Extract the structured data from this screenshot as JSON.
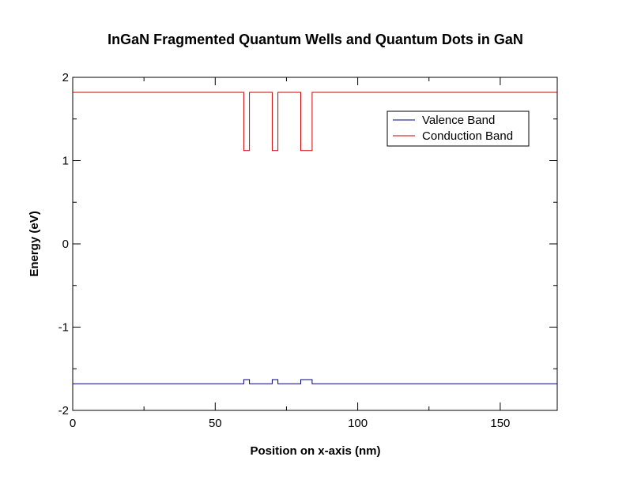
{
  "chart_data": {
    "type": "line",
    "title": "InGaN Fragmented Quantum Wells and Quantum Dots in GaN",
    "xlabel": "Position on x-axis (nm)",
    "ylabel": "Energy (eV)",
    "xlim": [
      0,
      170
    ],
    "ylim": [
      -2,
      2
    ],
    "x_ticks": [
      0,
      50,
      100,
      150
    ],
    "x_tick_labels": [
      "0",
      "50",
      "100",
      "150"
    ],
    "y_ticks": [
      -2,
      -1,
      0,
      1,
      2
    ],
    "y_tick_labels": [
      "-2",
      "-1",
      "0",
      "1",
      "2"
    ],
    "grid": false,
    "legend": {
      "position": "top-right"
    },
    "series": [
      {
        "name": "Valence Band",
        "color": "#000080",
        "x": [
          0,
          60,
          60,
          62,
          62,
          70,
          70,
          72,
          72,
          80,
          80,
          84,
          84,
          170
        ],
        "y": [
          -1.68,
          -1.68,
          -1.63,
          -1.63,
          -1.68,
          -1.68,
          -1.63,
          -1.63,
          -1.68,
          -1.68,
          -1.63,
          -1.63,
          -1.68,
          -1.68
        ]
      },
      {
        "name": "Conduction Band",
        "color": "#cc0000",
        "x": [
          0,
          60,
          60,
          62,
          62,
          70,
          70,
          72,
          72,
          80,
          80,
          84,
          84,
          170
        ],
        "y": [
          1.82,
          1.82,
          1.12,
          1.12,
          1.82,
          1.82,
          1.12,
          1.12,
          1.82,
          1.82,
          1.12,
          1.12,
          1.82,
          1.82
        ]
      }
    ]
  }
}
